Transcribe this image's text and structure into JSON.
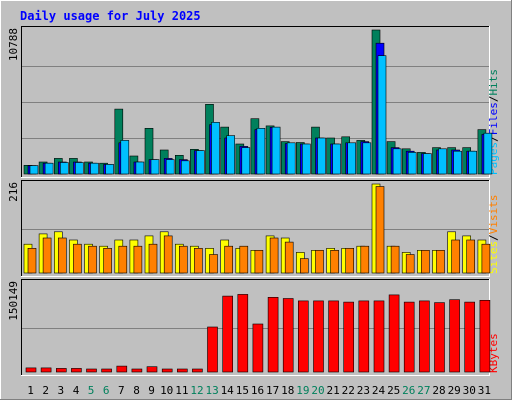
{
  "title": "Daily usage for July 2025",
  "colors": {
    "background": "#C0C0C0",
    "hits": "#00805C",
    "files": "#0000FF",
    "pages": "#00C0FF",
    "visits": "#FF8000",
    "sites": "#FFFF00",
    "kbytes": "#FF0000",
    "title": "#0000FF",
    "weekend_label": "#00805C",
    "day_label": "#000000"
  },
  "chart_data": [
    {
      "type": "bar",
      "panel": "top",
      "ymax_label": "10788",
      "ylim": [
        0,
        10788
      ],
      "right_labels": [
        "Pages",
        "/",
        "Files",
        "/",
        "Hits"
      ],
      "right_label_colors": [
        "#00C0FF",
        "#000000",
        "#0000FF",
        "#000000",
        "#00805C"
      ],
      "series": [
        {
          "name": "Hits",
          "values": [
            650,
            900,
            1170,
            1170,
            900,
            810,
            4860,
            1350,
            3420,
            1800,
            1400,
            1850,
            5220,
            3510,
            2250,
            4140,
            3600,
            2430,
            2360,
            3510,
            2700,
            2790,
            2520,
            10788,
            2430,
            1890,
            1620,
            1980,
            1980,
            1980,
            3330
          ]
        },
        {
          "name": "Files",
          "values": [
            630,
            810,
            900,
            900,
            810,
            720,
            2340,
            900,
            1080,
            1170,
            1080,
            1750,
            3690,
            2700,
            2070,
            3330,
            3500,
            2280,
            2250,
            2700,
            2250,
            2340,
            2430,
            9800,
            1980,
            1710,
            1530,
            1800,
            1800,
            1710,
            2970
          ]
        },
        {
          "name": "Pages",
          "values": [
            630,
            810,
            860,
            860,
            810,
            720,
            2520,
            900,
            1080,
            1080,
            990,
            1750,
            3870,
            2880,
            1980,
            3420,
            3510,
            2340,
            2250,
            2700,
            2250,
            2340,
            2340,
            8860,
            1890,
            1620,
            1530,
            1890,
            1710,
            1710,
            3060
          ]
        }
      ]
    },
    {
      "type": "bar",
      "panel": "middle",
      "ymax_label": "216",
      "ylim": [
        0,
        216
      ],
      "right_labels": [
        "Sites",
        "/",
        "Visits"
      ],
      "right_label_colors": [
        "#FFFF00",
        "#000000",
        "#FF8000"
      ],
      "series": [
        {
          "name": "Sites",
          "values": [
            70,
            95,
            100,
            80,
            70,
            65,
            80,
            80,
            90,
            100,
            70,
            65,
            60,
            80,
            60,
            55,
            90,
            85,
            50,
            55,
            60,
            60,
            65,
            216,
            65,
            50,
            55,
            55,
            100,
            90,
            80
          ]
        },
        {
          "name": "Visits",
          "values": [
            60,
            85,
            85,
            70,
            65,
            60,
            65,
            65,
            70,
            90,
            65,
            60,
            45,
            65,
            65,
            55,
            85,
            75,
            35,
            55,
            55,
            60,
            65,
            210,
            65,
            45,
            55,
            55,
            80,
            80,
            70
          ]
        }
      ]
    },
    {
      "type": "bar",
      "panel": "bottom",
      "ymax_label": "150149",
      "ylim": [
        0,
        150149
      ],
      "right_labels": [
        "KBytes"
      ],
      "right_label_colors": [
        "#FF0000"
      ],
      "series": [
        {
          "name": "KBytes",
          "values": [
            7000,
            7000,
            6000,
            6000,
            5000,
            5000,
            10000,
            5000,
            9000,
            5000,
            5000,
            5000,
            76000,
            128000,
            131000,
            81000,
            126000,
            124000,
            120000,
            120000,
            120000,
            118000,
            120000,
            120000,
            130000,
            118000,
            120000,
            117000,
            122000,
            118000,
            121000
          ]
        }
      ]
    }
  ],
  "x_axis": {
    "labels": [
      "1",
      "2",
      "3",
      "4",
      "5",
      "6",
      "7",
      "8",
      "9",
      "10",
      "11",
      "12",
      "13",
      "14",
      "15",
      "16",
      "17",
      "18",
      "19",
      "20",
      "21",
      "22",
      "23",
      "24",
      "25",
      "26",
      "27",
      "28",
      "29",
      "30",
      "31"
    ],
    "weekend_days": [
      5,
      6,
      12,
      13,
      19,
      20,
      26,
      27
    ]
  }
}
